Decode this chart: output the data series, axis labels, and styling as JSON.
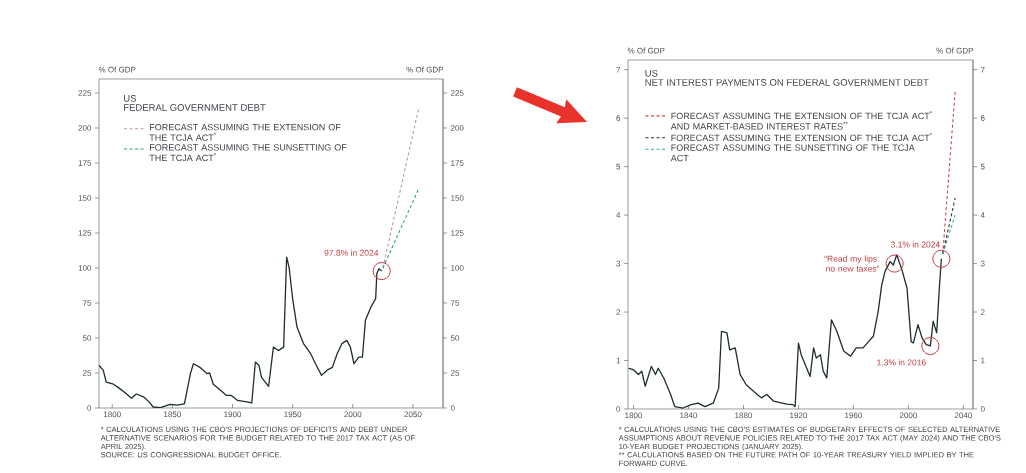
{
  "chart_data": [
    {
      "type": "line",
      "title": "US",
      "subtitle": "FEDERAL GOVERNMENT DEBT",
      "ylabel": "% Of GDP",
      "y2label": "% Of GDP",
      "xlim": [
        1789,
        2075
      ],
      "xticks": [
        1800,
        1850,
        1900,
        1950,
        2000,
        2050
      ],
      "ylim": [
        0,
        235
      ],
      "yticks": [
        0,
        25,
        50,
        75,
        100,
        125,
        150,
        175,
        200,
        225
      ],
      "y2lim": [
        0,
        235
      ],
      "y2ticks": [
        0,
        25,
        50,
        75,
        100,
        125,
        150,
        175,
        200,
        225
      ],
      "legend": "top left",
      "marker": "none",
      "series": [
        {
          "color": "#1e2d2d",
          "line_style": "solid",
          "x": [
            1789,
            1792.5,
            1795,
            1801,
            1806,
            1812,
            1816,
            1820,
            1826,
            1831,
            1834,
            1840,
            1848,
            1854,
            1860,
            1865,
            1867.5,
            1873,
            1879,
            1881,
            1884,
            1890,
            1895,
            1899,
            1904,
            1912,
            1916,
            1919,
            1922,
            1924,
            1930,
            1934,
            1938,
            1942.5,
            1945,
            1947,
            1950,
            1953.6,
            1959,
            1965,
            1969,
            1974,
            1978.6,
            1983,
            1987,
            1991,
            1995,
            1998,
            2001,
            2005,
            2008,
            2010.5,
            2015,
            2019,
            2020,
            2021.7,
            2024
          ],
          "values": [
            30.4,
            27,
            18.5,
            17,
            14,
            10,
            7,
            10,
            8,
            4,
            0.7,
            0.2,
            2.6,
            2,
            3,
            24.5,
            31.6,
            29,
            24.5,
            25,
            17,
            12.6,
            9,
            9,
            5.5,
            4.3,
            3.6,
            32.8,
            30.4,
            22,
            15.5,
            43.5,
            41,
            43.5,
            107.8,
            100.6,
            78,
            57.8,
            46,
            38.8,
            31.6,
            23.3,
            27,
            29,
            38.8,
            46,
            48.3,
            43.5,
            31.6,
            36.4,
            36.4,
            62.6,
            72,
            78,
            96,
            99.4,
            97.8
          ]
        },
        {
          "name": "FORECAST ASSUMING THE EXTENSION OF THE TCJA ACT$^{*}$",
          "color": "#b59b9b",
          "line_style": "dashed",
          "x": [
            2025,
            2055
          ],
          "values": [
            100,
            215
          ]
        },
        {
          "name": "FORECAST ASSUMING THE SUNSETTING OF THE TCJA ACT$^{*}$",
          "color": "#2f9e80",
          "line_style": "dashed",
          "x": [
            2025,
            2055
          ],
          "values": [
            100,
            157
          ]
        }
      ],
      "annotations": [
        {
          "text": "97.8% in 2024",
          "x": 2024,
          "y": 97.8
        },
        "* CALCULATIONS USING THE CBO'S PROJECTIONS OF DEFICITS AND DEBT UNDER ALTERNATIVE SCENARIOS FOR THE BUDGET RELATED TO THE 2017 TAX ACT (AS OF APRIL 2025).",
        "SOURCE: US CONGRESSIONAL BUDGET OFFICE."
      ]
    },
    {
      "type": "line",
      "title": "US",
      "subtitle": "NET INTEREST PAYMENTS ON FEDERAL GOVERNMENT DEBT",
      "ylabel": "% Of GDP",
      "y2label": "% Of GDP",
      "xlim": [
        1796,
        2047
      ],
      "xticks": [
        1800,
        1840,
        1880,
        1920,
        1960,
        2000,
        2040
      ],
      "ylim": [
        0,
        7.2
      ],
      "yticks": [
        0,
        1,
        2,
        3,
        4,
        5,
        6,
        7
      ],
      "y2lim": [
        0,
        7.2
      ],
      "y2ticks": [
        0,
        1,
        2,
        3,
        4,
        5,
        6,
        7
      ],
      "legend": "top left",
      "marker": "none",
      "series": [
        {
          "color": "#1e2d2d",
          "line_style": "solid",
          "x": [
            1796.4,
            1800,
            1803.6,
            1806,
            1808.5,
            1813,
            1816,
            1818,
            1822,
            1827,
            1830,
            1836,
            1842,
            1847,
            1852,
            1858,
            1862,
            1864,
            1868,
            1870,
            1874,
            1877.6,
            1882,
            1890,
            1893,
            1897,
            1902,
            1911.5,
            1916,
            1917.6,
            1920,
            1922,
            1926,
            1928.5,
            1931,
            1933,
            1936,
            1938,
            1940.6,
            1944,
            1948,
            1953,
            1958,
            1962,
            1967,
            1971,
            1974.5,
            1978,
            1980.6,
            1983,
            1986.7,
            1989,
            1991.5,
            1995,
            1999,
            2002,
            2003.6,
            2007,
            2010,
            2013,
            2016,
            2018,
            2020.6,
            2022.5,
            2024
          ],
          "values": [
            0.84,
            0.81,
            0.71,
            0.78,
            0.47,
            0.88,
            0.71,
            0.84,
            0.64,
            0.3,
            0.05,
            0.02,
            0.09,
            0.12,
            0.05,
            0.12,
            0.43,
            1.6,
            1.57,
            1.22,
            1.26,
            0.71,
            0.5,
            0.3,
            0.23,
            0.3,
            0.16,
            0.1,
            0.09,
            0.05,
            1.36,
            1.12,
            0.84,
            0.67,
            1.26,
            1.05,
            1.12,
            0.78,
            0.64,
            1.84,
            1.6,
            1.19,
            1.09,
            1.26,
            1.26,
            1.39,
            1.5,
            2.01,
            2.56,
            2.84,
            3.04,
            2.97,
            3.18,
            2.9,
            2.49,
            1.39,
            1.36,
            1.74,
            1.46,
            1.33,
            1.3,
            1.81,
            1.57,
            2.49,
            3.1
          ]
        },
        {
          "name": "FORECAST ASSUMING THE EXTENSION OF THE TCJA ACT$^{*}$ AND MARKET-BASED INTEREST RATES$^{**}$",
          "color": "#d0454a",
          "line_style": "dashed",
          "x": [
            2025,
            2034
          ],
          "values": [
            3.2,
            6.55
          ]
        },
        {
          "name": "FORECAST ASSUMING THE EXTENSION OF THE TCJA ACT$^{*}$",
          "color": "#243535",
          "line_style": "dashed",
          "x": [
            2025,
            2034
          ],
          "values": [
            3.2,
            4.35
          ]
        },
        {
          "name": "FORECAST ASSUMING THE SUNSETTING OF THE TCJA ACT",
          "color": "#3aa58a",
          "line_style": "dashed",
          "x": [
            2025,
            2034
          ],
          "values": [
            3.2,
            4.0
          ]
        }
      ],
      "annotations": [
        {
          "text": "3.1% in 2024",
          "x": 2024,
          "y": 3.1
        },
        {
          "text": "“Read my lips: no new taxes”",
          "x": 1990,
          "y": 3.0
        },
        {
          "text": "1.3% in 2016",
          "x": 2016,
          "y": 1.3
        },
        "* CALCULATIONS USING THE CBO'S ESTIMATES OF BUDGETARY EFFECTS OF SELECTED ALTERNATIVE ASSUMPTIONS ABOUT REVENUE POLICIES RELATED TO THE 2017 TAX ACT (MAY 2024) AND THE CBO'S 10-YEAR BUDGET PROJECTIONS (JANUARY 2025).",
        "** CALCULATIONS BASED ON THE FUTURE PATH OF 10-YEAR TREASURY YIELD IMPLIED BY THE FORWARD CURVE."
      ]
    }
  ]
}
